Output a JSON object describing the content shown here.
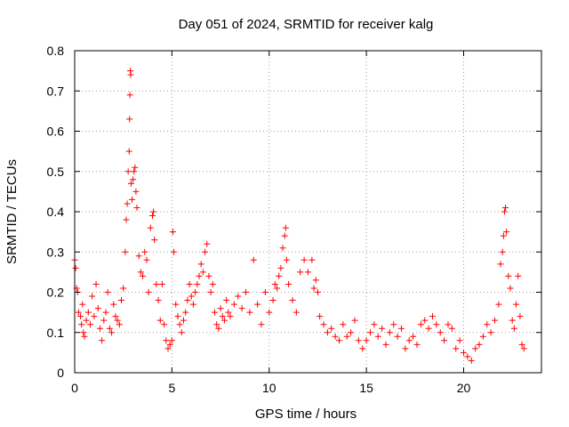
{
  "chart_data": {
    "type": "scatter",
    "title": "Day 051 of 2024, SRMTID for receiver kalg",
    "xlabel": "GPS time / hours",
    "ylabel": "SRMTID / TECUs",
    "xlim": [
      0,
      24
    ],
    "ylim": [
      0,
      0.8
    ],
    "xticks": [
      0,
      5,
      10,
      15,
      20
    ],
    "yticks": [
      0,
      0.1,
      0.2,
      0.3,
      0.4,
      0.5,
      0.6,
      0.7,
      0.8
    ],
    "xtick_labels": [
      "0",
      "5",
      "10",
      "15",
      "20"
    ],
    "ytick_labels": [
      "0",
      "0.1",
      "0.2",
      "0.3",
      "0.4",
      "0.5",
      "0.6",
      "0.7",
      "0.8"
    ],
    "grid": true,
    "marker": "+",
    "color": "#ff0000",
    "series": [
      {
        "name": "SRMTID",
        "points": [
          [
            0.0,
            0.28
          ],
          [
            0.05,
            0.26
          ],
          [
            0.1,
            0.21
          ],
          [
            0.15,
            0.2
          ],
          [
            0.2,
            0.15
          ],
          [
            0.3,
            0.14
          ],
          [
            0.35,
            0.12
          ],
          [
            0.4,
            0.17
          ],
          [
            0.45,
            0.1
          ],
          [
            0.5,
            0.09
          ],
          [
            0.6,
            0.13
          ],
          [
            0.7,
            0.15
          ],
          [
            0.8,
            0.12
          ],
          [
            0.9,
            0.19
          ],
          [
            1.0,
            0.14
          ],
          [
            1.1,
            0.22
          ],
          [
            1.2,
            0.16
          ],
          [
            1.3,
            0.11
          ],
          [
            1.4,
            0.08
          ],
          [
            1.5,
            0.13
          ],
          [
            1.6,
            0.15
          ],
          [
            1.7,
            0.2
          ],
          [
            1.8,
            0.11
          ],
          [
            1.9,
            0.1
          ],
          [
            2.0,
            0.17
          ],
          [
            2.1,
            0.14
          ],
          [
            2.2,
            0.13
          ],
          [
            2.3,
            0.12
          ],
          [
            2.4,
            0.18
          ],
          [
            2.5,
            0.21
          ],
          [
            2.6,
            0.3
          ],
          [
            2.65,
            0.38
          ],
          [
            2.7,
            0.42
          ],
          [
            2.75,
            0.5
          ],
          [
            2.8,
            0.55
          ],
          [
            2.82,
            0.63
          ],
          [
            2.84,
            0.69
          ],
          [
            2.86,
            0.75
          ],
          [
            2.88,
            0.74
          ],
          [
            2.9,
            0.47
          ],
          [
            2.95,
            0.43
          ],
          [
            3.0,
            0.48
          ],
          [
            3.05,
            0.5
          ],
          [
            3.1,
            0.51
          ],
          [
            3.15,
            0.45
          ],
          [
            3.2,
            0.41
          ],
          [
            3.3,
            0.29
          ],
          [
            3.4,
            0.25
          ],
          [
            3.5,
            0.24
          ],
          [
            3.6,
            0.3
          ],
          [
            3.7,
            0.28
          ],
          [
            3.8,
            0.2
          ],
          [
            3.9,
            0.36
          ],
          [
            4.0,
            0.39
          ],
          [
            4.05,
            0.4
          ],
          [
            4.1,
            0.33
          ],
          [
            4.2,
            0.22
          ],
          [
            4.3,
            0.18
          ],
          [
            4.4,
            0.13
          ],
          [
            4.5,
            0.22
          ],
          [
            4.6,
            0.12
          ],
          [
            4.7,
            0.08
          ],
          [
            4.8,
            0.06
          ],
          [
            4.9,
            0.07
          ],
          [
            5.0,
            0.08
          ],
          [
            5.05,
            0.35
          ],
          [
            5.1,
            0.3
          ],
          [
            5.2,
            0.17
          ],
          [
            5.3,
            0.14
          ],
          [
            5.4,
            0.12
          ],
          [
            5.5,
            0.1
          ],
          [
            5.6,
            0.13
          ],
          [
            5.7,
            0.15
          ],
          [
            5.8,
            0.18
          ],
          [
            5.9,
            0.22
          ],
          [
            6.0,
            0.19
          ],
          [
            6.1,
            0.17
          ],
          [
            6.2,
            0.2
          ],
          [
            6.3,
            0.22
          ],
          [
            6.4,
            0.24
          ],
          [
            6.5,
            0.27
          ],
          [
            6.6,
            0.25
          ],
          [
            6.7,
            0.3
          ],
          [
            6.8,
            0.32
          ],
          [
            6.9,
            0.24
          ],
          [
            7.0,
            0.2
          ],
          [
            7.1,
            0.22
          ],
          [
            7.2,
            0.15
          ],
          [
            7.3,
            0.12
          ],
          [
            7.4,
            0.11
          ],
          [
            7.5,
            0.16
          ],
          [
            7.6,
            0.14
          ],
          [
            7.7,
            0.13
          ],
          [
            7.8,
            0.18
          ],
          [
            7.9,
            0.15
          ],
          [
            8.0,
            0.14
          ],
          [
            8.2,
            0.17
          ],
          [
            8.4,
            0.19
          ],
          [
            8.6,
            0.16
          ],
          [
            8.8,
            0.2
          ],
          [
            9.0,
            0.15
          ],
          [
            9.2,
            0.28
          ],
          [
            9.4,
            0.17
          ],
          [
            9.6,
            0.12
          ],
          [
            9.8,
            0.2
          ],
          [
            10.0,
            0.15
          ],
          [
            10.2,
            0.18
          ],
          [
            10.3,
            0.22
          ],
          [
            10.4,
            0.21
          ],
          [
            10.5,
            0.24
          ],
          [
            10.6,
            0.26
          ],
          [
            10.7,
            0.31
          ],
          [
            10.8,
            0.34
          ],
          [
            10.85,
            0.36
          ],
          [
            10.9,
            0.28
          ],
          [
            11.0,
            0.22
          ],
          [
            11.2,
            0.18
          ],
          [
            11.4,
            0.15
          ],
          [
            11.6,
            0.25
          ],
          [
            11.8,
            0.28
          ],
          [
            12.0,
            0.25
          ],
          [
            12.2,
            0.28
          ],
          [
            12.3,
            0.21
          ],
          [
            12.4,
            0.23
          ],
          [
            12.5,
            0.2
          ],
          [
            12.6,
            0.14
          ],
          [
            12.8,
            0.12
          ],
          [
            13.0,
            0.1
          ],
          [
            13.2,
            0.11
          ],
          [
            13.4,
            0.09
          ],
          [
            13.6,
            0.08
          ],
          [
            13.8,
            0.12
          ],
          [
            14.0,
            0.09
          ],
          [
            14.2,
            0.1
          ],
          [
            14.4,
            0.13
          ],
          [
            14.6,
            0.08
          ],
          [
            14.8,
            0.06
          ],
          [
            15.0,
            0.08
          ],
          [
            15.2,
            0.1
          ],
          [
            15.4,
            0.12
          ],
          [
            15.6,
            0.09
          ],
          [
            15.8,
            0.11
          ],
          [
            16.0,
            0.07
          ],
          [
            16.2,
            0.1
          ],
          [
            16.4,
            0.12
          ],
          [
            16.6,
            0.09
          ],
          [
            16.8,
            0.11
          ],
          [
            17.0,
            0.06
          ],
          [
            17.2,
            0.08
          ],
          [
            17.4,
            0.09
          ],
          [
            17.6,
            0.07
          ],
          [
            17.8,
            0.12
          ],
          [
            18.0,
            0.13
          ],
          [
            18.2,
            0.11
          ],
          [
            18.4,
            0.14
          ],
          [
            18.6,
            0.12
          ],
          [
            18.8,
            0.1
          ],
          [
            19.0,
            0.08
          ],
          [
            19.2,
            0.12
          ],
          [
            19.4,
            0.11
          ],
          [
            19.6,
            0.06
          ],
          [
            19.8,
            0.08
          ],
          [
            20.0,
            0.05
          ],
          [
            20.2,
            0.04
          ],
          [
            20.4,
            0.03
          ],
          [
            20.6,
            0.06
          ],
          [
            20.8,
            0.07
          ],
          [
            21.0,
            0.09
          ],
          [
            21.2,
            0.12
          ],
          [
            21.4,
            0.1
          ],
          [
            21.6,
            0.13
          ],
          [
            21.8,
            0.17
          ],
          [
            21.9,
            0.27
          ],
          [
            22.0,
            0.3
          ],
          [
            22.05,
            0.34
          ],
          [
            22.1,
            0.4
          ],
          [
            22.15,
            0.41
          ],
          [
            22.2,
            0.35
          ],
          [
            22.3,
            0.24
          ],
          [
            22.4,
            0.21
          ],
          [
            22.5,
            0.13
          ],
          [
            22.6,
            0.11
          ],
          [
            22.7,
            0.17
          ],
          [
            22.8,
            0.24
          ],
          [
            22.9,
            0.14
          ],
          [
            23.0,
            0.07
          ],
          [
            23.1,
            0.06
          ]
        ]
      }
    ]
  }
}
